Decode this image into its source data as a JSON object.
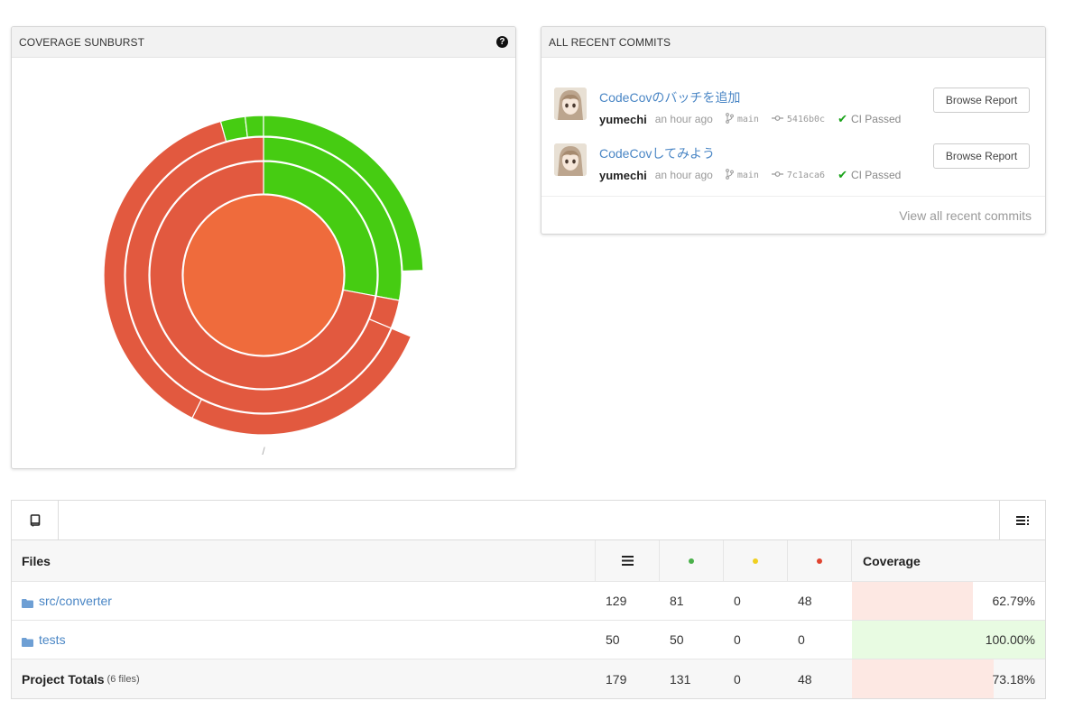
{
  "sunburst": {
    "title": "COVERAGE SUNBURST",
    "help_icon": "question-circle-icon",
    "path_label": "/",
    "colors": {
      "covered": "#46cc12",
      "partial": "#e2593f",
      "root": "#ef6b3c"
    },
    "center": {
      "color": "root",
      "coverage_pct": 73.18
    },
    "rings": [
      [
        {
          "start": 0,
          "end": 0.2793,
          "color": "covered"
        },
        {
          "start": 0.2793,
          "end": 1,
          "color": "partial"
        }
      ],
      [
        {
          "start": 0,
          "end": 0.2793,
          "color": "covered"
        },
        {
          "start": 0.2793,
          "end": 0.3128,
          "color": "partial"
        },
        {
          "start": 0.3128,
          "end": 1,
          "color": "partial"
        }
      ],
      [
        {
          "start": 0.9566,
          "end": 0.9816,
          "color": "covered"
        },
        {
          "start": 0.9816,
          "end": 1,
          "color": "covered"
        },
        {
          "start": 0,
          "end": 0.2453,
          "color": "covered"
        },
        {
          "start": 0.3128,
          "end": 0.5737,
          "color": "partial"
        },
        {
          "start": 0.5737,
          "end": 0.9566,
          "color": "partial"
        }
      ]
    ]
  },
  "commits": {
    "title": "ALL RECENT COMMITS",
    "items": [
      {
        "message": "CodeCovのバッチを追加",
        "author": "yumechi",
        "time": "an hour ago",
        "branch": "main",
        "sha": "5416b0c",
        "ci": "CI Passed",
        "button": "Browse Report"
      },
      {
        "message": "CodeCovしてみよう",
        "author": "yumechi",
        "time": "an hour ago",
        "branch": "main",
        "sha": "7c1aca6",
        "ci": "CI Passed",
        "button": "Browse Report"
      }
    ],
    "footer": "View all recent commits"
  },
  "table": {
    "headers": {
      "files": "Files",
      "coverage": "Coverage"
    },
    "header_icons": [
      "lines-icon",
      "hit-dot-icon",
      "partial-dot-icon",
      "miss-dot-icon"
    ],
    "dot_colors": {
      "hit": "#4ab04a",
      "partial": "#f0d020",
      "miss": "#e04430"
    },
    "cov_colors": {
      "low": "#fde8e3",
      "high": "#e8fbe2"
    },
    "rows": [
      {
        "name": "src/converter",
        "lines": "129",
        "hits": "81",
        "partials": "0",
        "misses": "48",
        "coverage": "62.79%",
        "coverage_value": 62.79,
        "level": "low"
      },
      {
        "name": "tests",
        "lines": "50",
        "hits": "50",
        "partials": "0",
        "misses": "0",
        "coverage": "100.00%",
        "coverage_value": 100,
        "level": "high"
      }
    ],
    "totals": {
      "label": "Project Totals",
      "sub": "(6 files)",
      "lines": "179",
      "hits": "131",
      "partials": "0",
      "misses": "48",
      "coverage": "73.18%",
      "coverage_value": 73.18,
      "level": "low"
    }
  }
}
